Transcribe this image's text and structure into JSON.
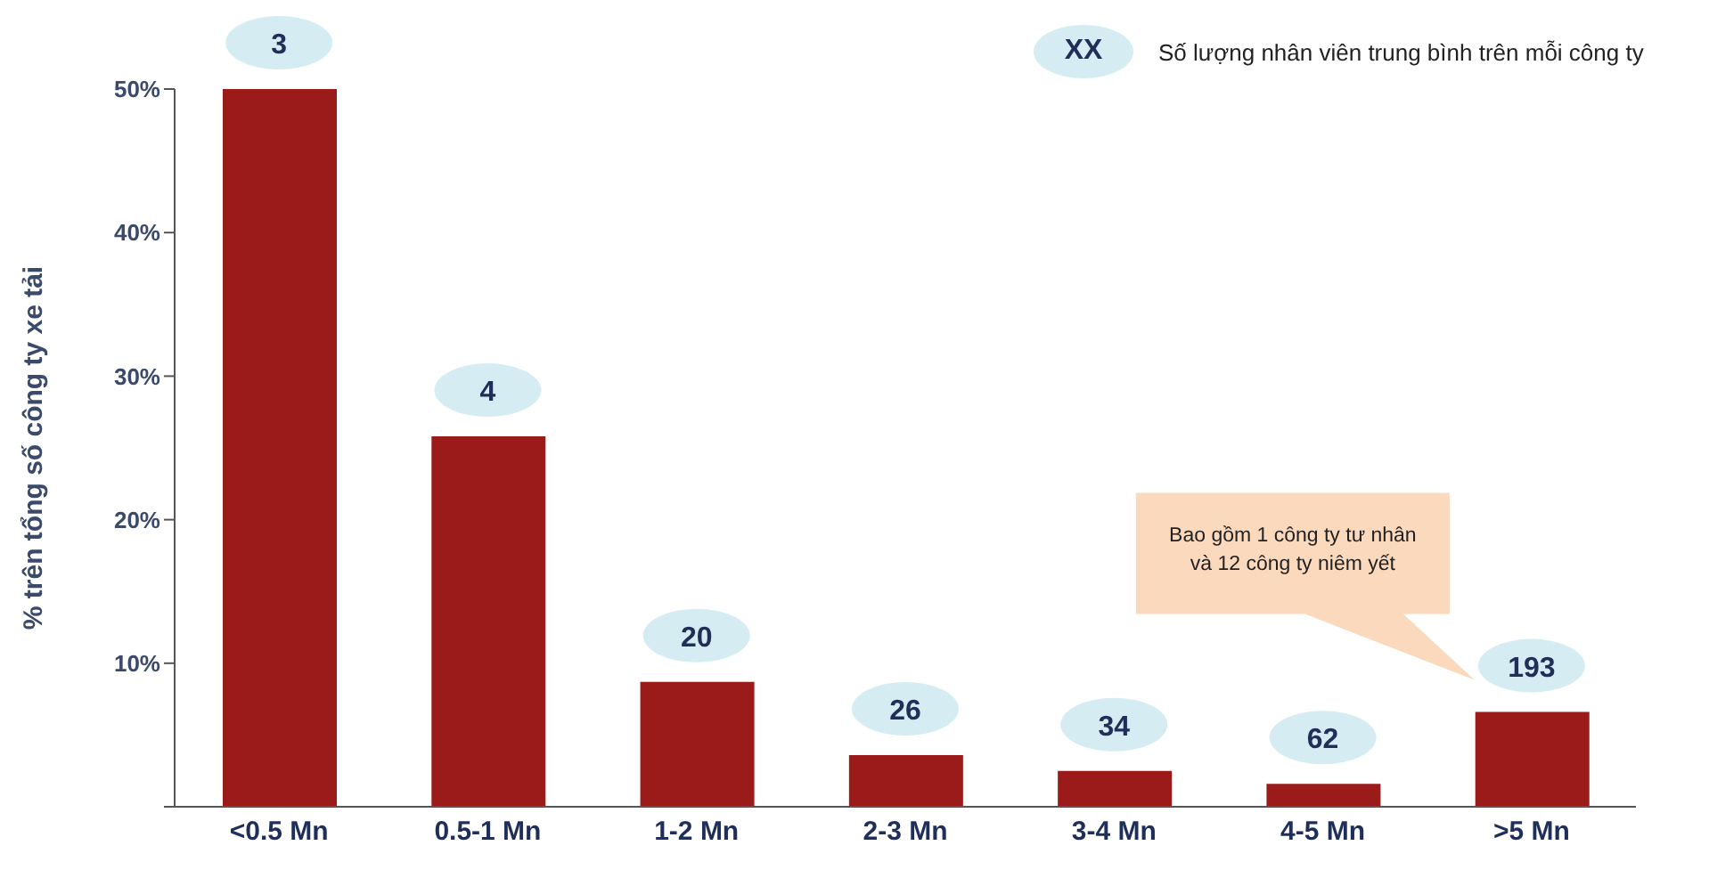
{
  "chart_data": {
    "type": "bar",
    "ylabel": "% trên tổng số công ty xe tải",
    "categories": [
      "<0.5 Mn",
      "0.5-1 Mn",
      "1-2 Mn",
      "2-3 Mn",
      "3-4 Mn",
      "4-5 Mn",
      ">5 Mn"
    ],
    "values": [
      50,
      25.8,
      8.7,
      3.6,
      2.5,
      1.6,
      6.6
    ],
    "color": "#9b1b1b",
    "ylim": [
      0,
      50
    ],
    "yticks": [
      {
        "value": 0,
        "label": null
      },
      {
        "value": 10,
        "label": "10%"
      },
      {
        "value": 20,
        "label": "20%"
      },
      {
        "value": 30,
        "label": "30%"
      },
      {
        "value": 40,
        "label": "40%"
      },
      {
        "value": 50,
        "label": "50%"
      }
    ],
    "grid": false,
    "legend": false,
    "annotations": [
      "XX",
      "Số lượng nhân viên trung bình trên mỗi công ty",
      "Bao gồm 1 công ty tư nhân và 12 công ty niêm yết",
      {
        "text": "3",
        "x": "<0.5 Mn",
        "y": 50
      },
      {
        "text": "4",
        "x": "0.5-1 Mn",
        "y": 25.8
      },
      {
        "text": "20",
        "x": "1-2 Mn",
        "y": 8.7
      },
      {
        "text": "26",
        "x": "2-3 Mn",
        "y": 3.6
      },
      {
        "text": "34",
        "x": "3-4 Mn",
        "y": 2.5
      },
      {
        "text": "62",
        "x": "4-5 Mn",
        "y": 1.6
      },
      {
        "text": "193",
        "x": ">5 Mn",
        "y": 6.6
      }
    ]
  }
}
